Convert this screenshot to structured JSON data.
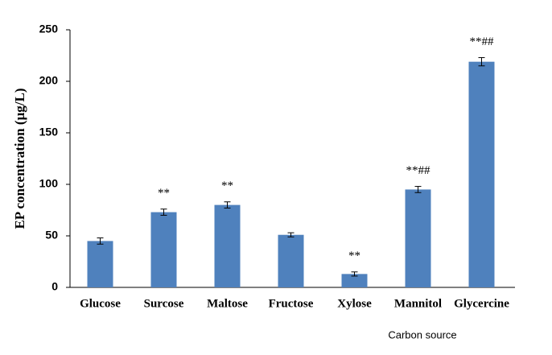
{
  "chart_data": {
    "type": "bar",
    "y_label": "EP concentration (µg/L)",
    "x_label": "Carbon source",
    "categories": [
      "Glucose",
      "Surcose",
      "Maltose",
      "Fructose",
      "Xylose",
      "Mannitol",
      "Glycercine"
    ],
    "values": [
      45,
      73,
      80,
      51,
      13,
      95,
      219
    ],
    "errors": [
      3,
      3,
      3,
      2,
      2,
      3,
      4
    ],
    "annotations": [
      null,
      "**",
      "**",
      null,
      "**",
      "**##",
      "**##"
    ],
    "color": "#4f81bd",
    "ylim": [
      0,
      250
    ],
    "yticks": [
      0,
      50,
      100,
      150,
      200,
      250
    ],
    "grid": false
  }
}
